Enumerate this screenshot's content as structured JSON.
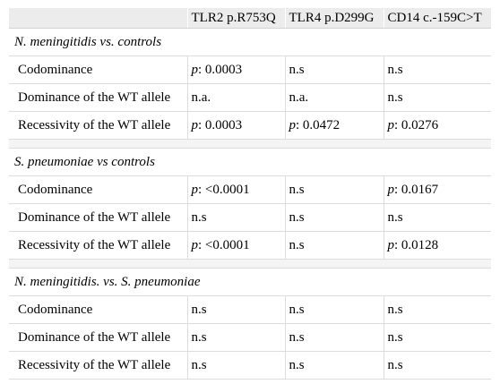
{
  "columns": [
    "",
    "TLR2 p.R753Q",
    "TLR4 p.D299G",
    "CD14 c.-159C>T"
  ],
  "sections": [
    {
      "title": "N. meningitidis vs. controls",
      "rows": [
        {
          "label": "Codominance",
          "cells": [
            {
              "p": true,
              "value": ": 0.0003"
            },
            {
              "p": false,
              "value": "n.s"
            },
            {
              "p": false,
              "value": "n.s"
            }
          ]
        },
        {
          "label": "Dominance of the WT allele",
          "cells": [
            {
              "p": false,
              "value": "n.a."
            },
            {
              "p": false,
              "value": "n.a."
            },
            {
              "p": false,
              "value": "n.s"
            }
          ]
        },
        {
          "label": "Recessivity of the WT allele",
          "cells": [
            {
              "p": true,
              "value": ": 0.0003"
            },
            {
              "p": true,
              "value": ": 0.0472"
            },
            {
              "p": true,
              "value": ": 0.0276"
            }
          ]
        }
      ]
    },
    {
      "title": "S. pneumoniae vs controls",
      "rows": [
        {
          "label": "Codominance",
          "cells": [
            {
              "p": true,
              "value": ": <0.0001"
            },
            {
              "p": false,
              "value": "n.s"
            },
            {
              "p": true,
              "value": ": 0.0167"
            }
          ]
        },
        {
          "label": "Dominance of the WT allele",
          "cells": [
            {
              "p": false,
              "value": "n.s"
            },
            {
              "p": false,
              "value": "n.s"
            },
            {
              "p": false,
              "value": "n.s"
            }
          ]
        },
        {
          "label": "Recessivity of the WT allele",
          "cells": [
            {
              "p": true,
              "value": ": <0.0001"
            },
            {
              "p": false,
              "value": "n.s"
            },
            {
              "p": true,
              "value": ": 0.0128"
            }
          ]
        }
      ]
    },
    {
      "title": "N. meningitidis. vs. S. pneumoniae",
      "rows": [
        {
          "label": "Codominance",
          "cells": [
            {
              "p": false,
              "value": "n.s"
            },
            {
              "p": false,
              "value": "n.s"
            },
            {
              "p": false,
              "value": "n.s"
            }
          ]
        },
        {
          "label": "Dominance of the WT allele",
          "cells": [
            {
              "p": false,
              "value": "n.s"
            },
            {
              "p": false,
              "value": "n.s"
            },
            {
              "p": false,
              "value": "n.s"
            }
          ]
        },
        {
          "label": "Recessivity of the WT allele",
          "cells": [
            {
              "p": false,
              "value": "n.s"
            },
            {
              "p": false,
              "value": "n.s"
            },
            {
              "p": false,
              "value": "n.s"
            }
          ]
        }
      ]
    }
  ],
  "p_symbol": "p"
}
